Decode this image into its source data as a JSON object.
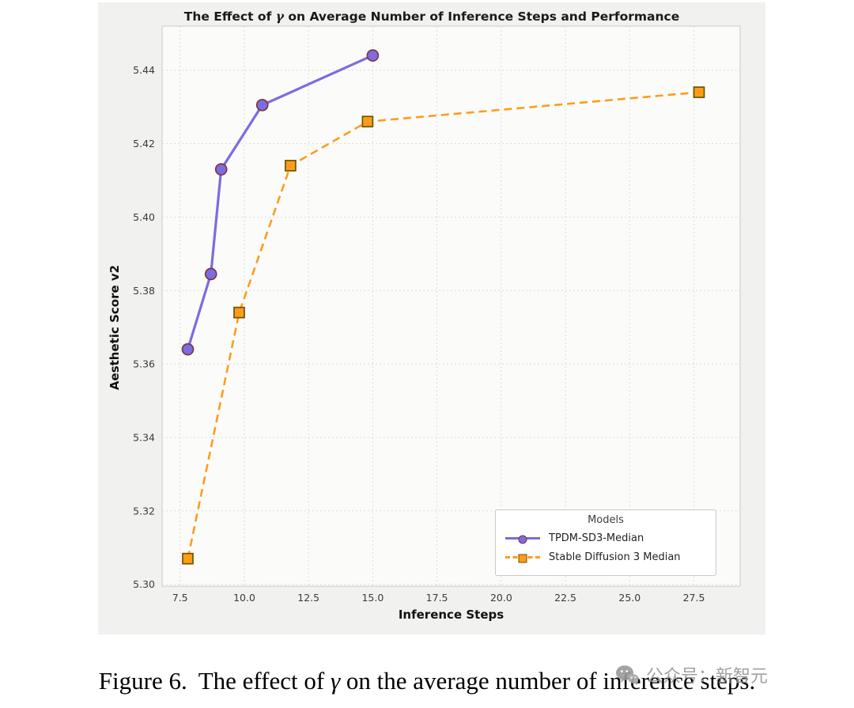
{
  "chart_data": {
    "type": "line",
    "title": "The Effect of γ on Average Number of Inference Steps and Performance",
    "title_parts": {
      "before": "The Effect of",
      "gamma": "γ",
      "after": "on Average Number of Inference Steps and Performance"
    },
    "xlabel": "Inference Steps",
    "ylabel": "Aesthetic Score v2",
    "xlim": [
      6.8,
      29.3
    ],
    "ylim": [
      5.2995,
      5.452
    ],
    "xticks": [
      7.5,
      10.0,
      12.5,
      15.0,
      17.5,
      20.0,
      22.5,
      25.0,
      27.5
    ],
    "yticks": [
      5.3,
      5.32,
      5.34,
      5.36,
      5.38,
      5.4,
      5.42,
      5.44
    ],
    "grid": true,
    "plot_background": "#fbfbfa",
    "figure_background": "#f1f1f0",
    "legend": {
      "title": "Models",
      "position": "lower right"
    },
    "series": [
      {
        "name": "TPDM-SD3-Median",
        "color": "#7C6CE0",
        "marker": "circle",
        "marker_edge": "#7E3545",
        "line_style": "solid",
        "line_width": 3.2,
        "x": [
          7.8,
          8.7,
          9.1,
          10.7,
          15.0
        ],
        "y": [
          5.364,
          5.3845,
          5.413,
          5.4305,
          5.444
        ]
      },
      {
        "name": "Stable Diffusion 3 Median",
        "color": "#FF9C1A",
        "marker": "square",
        "marker_edge": "#6B5500",
        "line_style": "dashed",
        "line_width": 2.6,
        "x": [
          7.8,
          9.8,
          11.8,
          14.8,
          27.7
        ],
        "y": [
          5.307,
          5.374,
          5.414,
          5.426,
          5.434
        ]
      }
    ]
  },
  "caption": {
    "prefix": "Figure 6.",
    "before_gamma": "The effect of",
    "gamma": "γ",
    "after_gamma": "on the average number of inference steps."
  },
  "watermark": {
    "text": "公众号：新智元"
  }
}
